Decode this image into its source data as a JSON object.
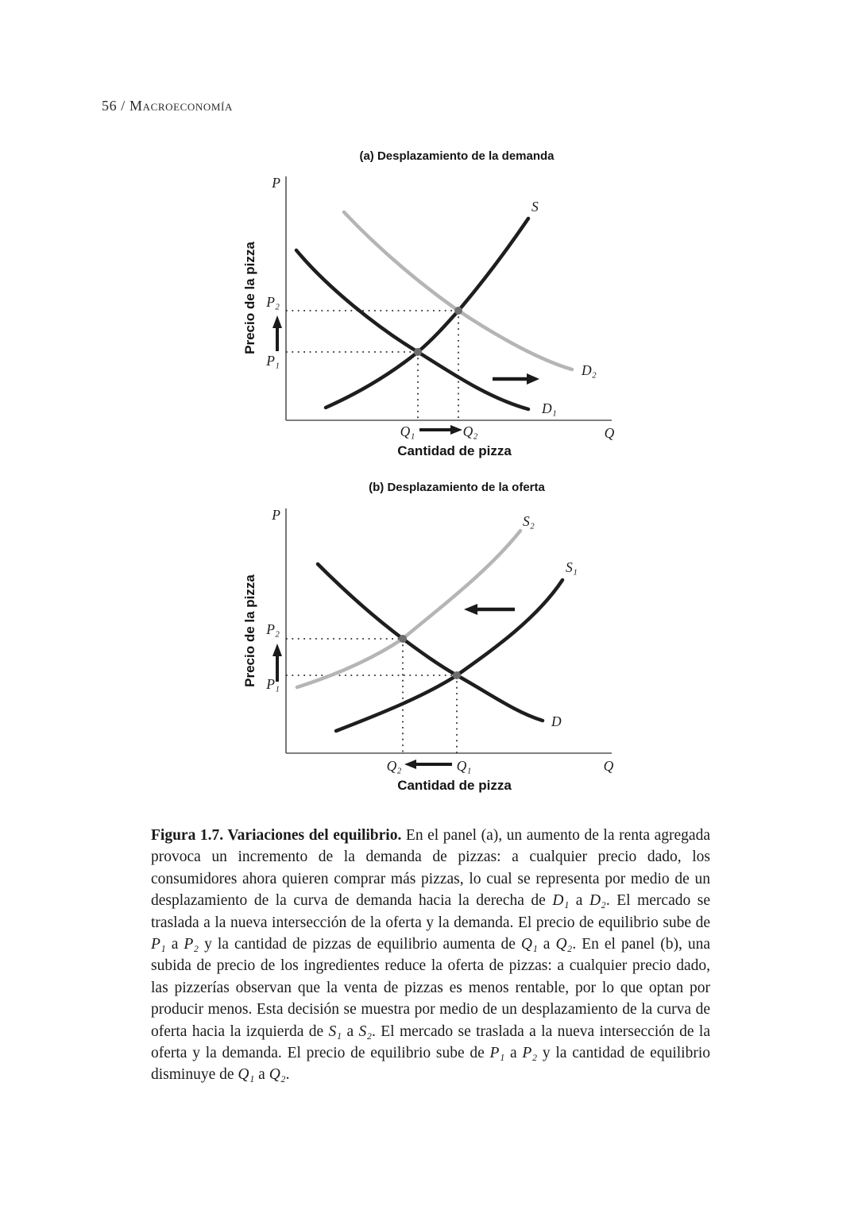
{
  "page": {
    "header": "56 / Macroeconomía"
  },
  "colors": {
    "curve_black": "#1e1e1e",
    "curve_gray": "#b5b5b5",
    "axis": "#555555",
    "equilibrium_dot": "#6e6e6e",
    "text": "#1c1c1c"
  },
  "figure": {
    "panel_a": {
      "title": "(a) Desplazamiento de la demanda",
      "y_axis_title": "Precio de la pizza",
      "x_axis_title": "Cantidad de pizza",
      "axis_p": "P",
      "axis_q": "Q",
      "labels": {
        "s": "S",
        "d1": "D₁",
        "d2": "D₂",
        "p1": "P₁",
        "p2": "P₂",
        "q1": "Q₁",
        "q2": "Q₂"
      }
    },
    "panel_b": {
      "title": "(b) Desplazamiento de la oferta",
      "y_axis_title": "Precio de la pizza",
      "x_axis_title": "Cantidad de pizza",
      "axis_p": "P",
      "axis_q": "Q",
      "labels": {
        "s1": "S₁",
        "s2": "S₂",
        "d": "D",
        "p1": "P₁",
        "p2": "P₂",
        "q1": "Q₁",
        "q2": "Q₂"
      }
    }
  },
  "chart_data": [
    {
      "type": "line",
      "title": "(a) Desplazamiento de la demanda",
      "xlabel": "Cantidad de pizza",
      "ylabel": "Precio de la pizza",
      "series": [
        {
          "name": "S",
          "role": "curva de oferta",
          "direction": "creciente",
          "color": "#1e1e1e"
        },
        {
          "name": "D₁",
          "role": "curva de demanda inicial",
          "direction": "decreciente",
          "color": "#1e1e1e"
        },
        {
          "name": "D₂",
          "role": "curva de demanda desplazada a la derecha",
          "direction": "decreciente",
          "color": "#b5b5b5"
        }
      ],
      "shift": "D₁ → D₂ (hacia la derecha)",
      "equilibria": [
        {
          "intersection": "S × D₁",
          "price": "P₁",
          "quantity": "Q₁"
        },
        {
          "intersection": "S × D₂",
          "price": "P₂",
          "quantity": "Q₂"
        }
      ],
      "annotations": [
        "El precio sube de P₁ a P₂",
        "La cantidad aumenta de Q₁ a Q₂"
      ],
      "grid": false,
      "legend": false
    },
    {
      "type": "line",
      "title": "(b) Desplazamiento de la oferta",
      "xlabel": "Cantidad de pizza",
      "ylabel": "Precio de la pizza",
      "series": [
        {
          "name": "S₁",
          "role": "curva de oferta inicial",
          "direction": "creciente",
          "color": "#1e1e1e"
        },
        {
          "name": "S₂",
          "role": "curva de oferta desplazada a la izquierda",
          "direction": "creciente",
          "color": "#b5b5b5"
        },
        {
          "name": "D",
          "role": "curva de demanda",
          "direction": "decreciente",
          "color": "#1e1e1e"
        }
      ],
      "shift": "S₁ → S₂ (hacia la izquierda)",
      "equilibria": [
        {
          "intersection": "S₁ × D",
          "price": "P₁",
          "quantity": "Q₁"
        },
        {
          "intersection": "S₂ × D",
          "price": "P₂",
          "quantity": "Q₂"
        }
      ],
      "annotations": [
        "El precio sube de P₁ a P₂",
        "La cantidad disminuye de Q₁ a Q₂"
      ],
      "grid": false,
      "legend": false
    }
  ],
  "caption": {
    "segments": [
      {
        "t": "Figura 1.7. Variaciones del equilibrio.",
        "s": "b"
      },
      {
        "t": " En el panel (a), un aumento de la renta agregada provoca un incremento de la demanda de pizzas: a cualquier precio dado, los consumidores ahora quieren comprar más pizzas, lo cual se representa por medio de un desplazamiento de la curva de demanda hacia la derecha de "
      },
      {
        "t": "D₁",
        "s": "i"
      },
      {
        "t": " a "
      },
      {
        "t": "D₂",
        "s": "i"
      },
      {
        "t": ". El mercado se traslada a la nueva intersección de la oferta y la demanda. El precio de equilibrio sube de "
      },
      {
        "t": "P₁",
        "s": "i"
      },
      {
        "t": " a "
      },
      {
        "t": "P₂",
        "s": "i"
      },
      {
        "t": " y la cantidad de pizzas de equilibrio aumenta de "
      },
      {
        "t": "Q₁",
        "s": "i"
      },
      {
        "t": " a "
      },
      {
        "t": "Q₂",
        "s": "i"
      },
      {
        "t": ". En el panel (b), una subida de precio de los ingredientes reduce la oferta de pizzas: a cualquier precio dado, las pizzerías observan que la venta de pizzas es menos rentable, por lo que optan por producir menos. Esta decisión se muestra por medio de un desplazamiento de la curva de oferta hacia la izquierda de "
      },
      {
        "t": "S₁",
        "s": "i"
      },
      {
        "t": " a "
      },
      {
        "t": "S₂",
        "s": "i"
      },
      {
        "t": ". El mercado se traslada a la nueva intersección de la oferta y la demanda. El precio de equilibrio sube de "
      },
      {
        "t": "P₁",
        "s": "i"
      },
      {
        "t": " a "
      },
      {
        "t": "P₂",
        "s": "i"
      },
      {
        "t": " y la cantidad de equilibrio disminuye de "
      },
      {
        "t": "Q₁",
        "s": "i"
      },
      {
        "t": " a "
      },
      {
        "t": "Q₂",
        "s": "i"
      },
      {
        "t": "."
      }
    ]
  }
}
